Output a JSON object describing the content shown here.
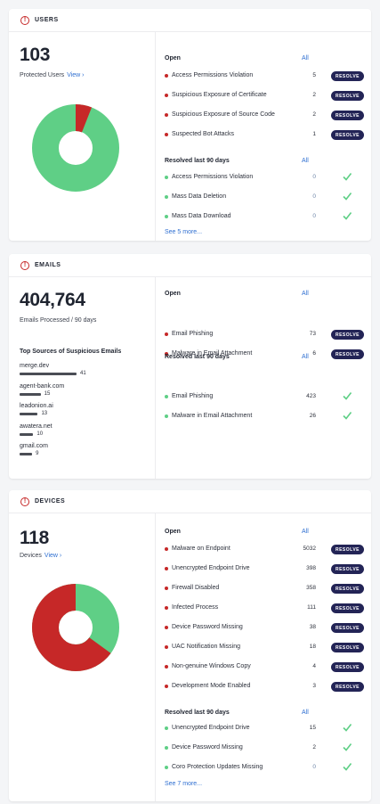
{
  "colors": {
    "red": "#c62828",
    "green": "#5fcf86",
    "button": "#232456",
    "link": "#2f6fd1"
  },
  "users": {
    "title": "USERS",
    "icon": "alert-circle-icon",
    "count": "103",
    "label": "Protected Users",
    "view": "View ›",
    "donut": {
      "red_fraction": 0.06,
      "green_fraction": 0.94
    },
    "open": {
      "heading": "Open",
      "all": "All",
      "items": [
        {
          "label": "Access Permissions Violation",
          "count": "5",
          "action": "RESOLVE"
        },
        {
          "label": "Suspicious Exposure of Certificate",
          "count": "2",
          "action": "RESOLVE"
        },
        {
          "label": "Suspicious Exposure of Source Code",
          "count": "2",
          "action": "RESOLVE"
        },
        {
          "label": "Suspected Bot Attacks",
          "count": "1",
          "action": "RESOLVE"
        }
      ]
    },
    "resolved": {
      "heading": "Resolved last 90 days",
      "all": "All",
      "items": [
        {
          "label": "Access Permissions Violation",
          "count": "0"
        },
        {
          "label": "Mass Data Deletion",
          "count": "0"
        },
        {
          "label": "Mass Data Download",
          "count": "0"
        }
      ]
    },
    "more": "See 5 more..."
  },
  "emails": {
    "title": "EMAILS",
    "icon": "alert-circle-icon",
    "count": "404,764",
    "label": "Emails Processed / 90 days",
    "sources_title": "Top Sources of Suspicious Emails",
    "sources": [
      {
        "name": "merge.dev",
        "count": "41",
        "fraction": 1.0
      },
      {
        "name": "agent-bank.com",
        "count": "15",
        "fraction": 0.37
      },
      {
        "name": "leadonion.ai",
        "count": "13",
        "fraction": 0.32
      },
      {
        "name": "awatera.net",
        "count": "10",
        "fraction": 0.24
      },
      {
        "name": "gmail.com",
        "count": "9",
        "fraction": 0.22
      }
    ],
    "open": {
      "heading": "Open",
      "all": "All",
      "items": [
        {
          "label": "Email Phishing",
          "count": "73",
          "action": "RESOLVE"
        },
        {
          "label": "Malware in Email Attachment",
          "count": "6",
          "action": "RESOLVE"
        }
      ]
    },
    "resolved": {
      "heading": "Resolved last 90 days",
      "all": "All",
      "items": [
        {
          "label": "Email Phishing",
          "count": "423"
        },
        {
          "label": "Malware in Email Attachment",
          "count": "26"
        }
      ]
    }
  },
  "devices": {
    "title": "DEVICES",
    "icon": "alert-circle-icon",
    "count": "118",
    "label": "Devices",
    "view": "View ›",
    "donut": {
      "red_fraction": 0.65,
      "green_fraction": 0.35
    },
    "open": {
      "heading": "Open",
      "all": "All",
      "items": [
        {
          "label": "Malware on Endpoint",
          "count": "5032",
          "action": "RESOLVE"
        },
        {
          "label": "Unencrypted Endpoint Drive",
          "count": "398",
          "action": "RESOLVE"
        },
        {
          "label": "Firewall Disabled",
          "count": "358",
          "action": "RESOLVE"
        },
        {
          "label": "Infected Process",
          "count": "111",
          "action": "RESOLVE"
        },
        {
          "label": "Device Password Missing",
          "count": "38",
          "action": "RESOLVE"
        },
        {
          "label": "UAC Notification Missing",
          "count": "18",
          "action": "RESOLVE"
        },
        {
          "label": "Non-genuine Windows Copy",
          "count": "4",
          "action": "RESOLVE"
        },
        {
          "label": "Development Mode Enabled",
          "count": "3",
          "action": "RESOLVE"
        }
      ]
    },
    "resolved": {
      "heading": "Resolved last 90 days",
      "all": "All",
      "items": [
        {
          "label": "Unencrypted Endpoint Drive",
          "count": "15"
        },
        {
          "label": "Device Password Missing",
          "count": "2"
        },
        {
          "label": "Coro Protection Updates Missing",
          "count": "0"
        }
      ]
    },
    "more": "See 7 more..."
  }
}
